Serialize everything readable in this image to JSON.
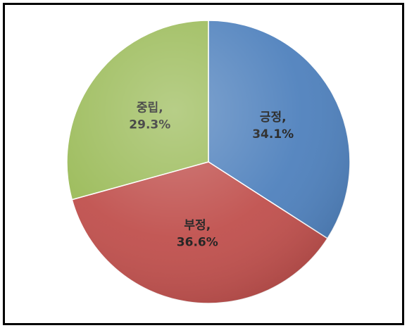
{
  "chart_data": {
    "type": "pie",
    "slices": [
      {
        "label": "긍정",
        "value": 34.1,
        "value_text": "34.1%",
        "color": "#4f81bd"
      },
      {
        "label": "부정",
        "value": 36.6,
        "value_text": "36.6%",
        "color": "#c0504d"
      },
      {
        "label": "중립",
        "value": 29.3,
        "value_text": "29.3%",
        "color": "#9bbb59"
      }
    ],
    "start_angle": "12 o'clock",
    "direction": "clockwise",
    "legend": "none",
    "data_labels": "inside slices (category, percentage)"
  }
}
